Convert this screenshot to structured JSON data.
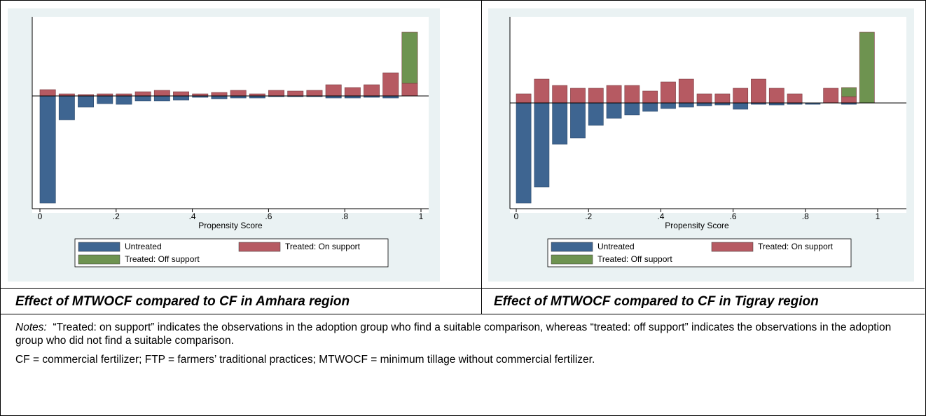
{
  "chart_data": [
    {
      "type": "mirrored-histogram",
      "x_label": "Propensity Score",
      "bins": [
        0,
        0.05,
        0.1,
        0.15,
        0.2,
        0.25,
        0.3,
        0.35,
        0.4,
        0.45,
        0.5,
        0.55,
        0.6,
        0.65,
        0.7,
        0.75,
        0.8,
        0.85,
        0.9,
        0.95,
        1
      ],
      "xlim": [
        0,
        1
      ],
      "xticks": [
        0,
        {
          "value": 0.2,
          "label": ".2"
        },
        {
          "value": 0.4,
          "label": ".4"
        },
        {
          "value": 0.6,
          "label": ".6"
        },
        {
          "value": 0.8,
          "label": ".8"
        },
        1
      ],
      "ylim": [
        -16,
        10
      ],
      "series": [
        {
          "name": "Untreated",
          "color": "#3e6591",
          "values": [
            -15.3,
            -3.4,
            -1.6,
            -1.1,
            -1.2,
            -0.7,
            -0.7,
            -0.6,
            -0.2,
            -0.4,
            -0.3,
            -0.3,
            -0.1,
            -0.1,
            -0.1,
            -0.3,
            -0.3,
            -0.2,
            -0.3,
            0
          ]
        },
        {
          "name": "Treated: On support",
          "color": "#b65a62",
          "values": [
            0.9,
            0.3,
            0.2,
            0.3,
            0.3,
            0.6,
            0.8,
            0.6,
            0.3,
            0.5,
            0.8,
            0.3,
            0.8,
            0.7,
            0.8,
            1.6,
            1.2,
            1.6,
            3.3,
            1.8
          ]
        },
        {
          "name": "Treated: Off support",
          "color": "#6e9350",
          "values": [
            0,
            0,
            0,
            0,
            0,
            0,
            0,
            0,
            0,
            0,
            0,
            0,
            0,
            0,
            0,
            0,
            0,
            0,
            0,
            7.3
          ]
        }
      ]
    },
    {
      "type": "mirrored-histogram",
      "x_label": "Propensity Score",
      "bins": [
        0,
        0.05,
        0.1,
        0.15,
        0.2,
        0.25,
        0.3,
        0.35,
        0.4,
        0.45,
        0.5,
        0.55,
        0.6,
        0.65,
        0.7,
        0.75,
        0.8,
        0.85,
        0.9,
        0.95,
        1
      ],
      "xlim": [
        0,
        1
      ],
      "xticks": [
        0,
        {
          "value": 0.2,
          "label": ".2"
        },
        {
          "value": 0.4,
          "label": ".4"
        },
        {
          "value": 0.6,
          "label": ".6"
        },
        {
          "value": 0.8,
          "label": ".8"
        },
        1
      ],
      "ylim": [
        -15,
        11.5
      ],
      "series": [
        {
          "name": "Untreated",
          "color": "#3e6591",
          "values": [
            -14.3,
            -12.0,
            -5.9,
            -5.0,
            -3.2,
            -2.2,
            -1.7,
            -1.2,
            -0.8,
            -0.6,
            -0.4,
            -0.3,
            -0.9,
            -0.2,
            -0.3,
            -0.2,
            -0.2,
            0,
            -0.2,
            0
          ]
        },
        {
          "name": "Treated: On support",
          "color": "#b65a62",
          "values": [
            1.3,
            3.4,
            2.5,
            2.1,
            2.1,
            2.5,
            2.5,
            1.7,
            3.0,
            3.4,
            1.3,
            1.3,
            2.1,
            3.4,
            2.1,
            1.3,
            0,
            2.1,
            0.9,
            0
          ]
        },
        {
          "name": "Treated: Off support",
          "color": "#6e9350",
          "values": [
            0,
            0,
            0,
            0,
            0,
            0,
            0,
            0,
            0,
            0,
            0,
            0,
            0,
            0,
            0,
            0,
            0,
            0,
            1.3,
            10.1
          ]
        }
      ]
    }
  ],
  "captions": [
    "Effect of MTWOCF compared to CF in Amhara region",
    "Effect of MTWOCF compared to CF in Tigray region"
  ],
  "notes": {
    "label": "Notes:",
    "text": "“Treated: on support” indicates the observations in the adoption group who find a suitable comparison, whereas “treated: off support” indicates the observations in the adoption group who did not find a suitable comparison.",
    "definitions": "CF = commercial fertilizer; FTP = farmers’ traditional practices; MTWOCF = minimum tillage without commercial fertilizer."
  }
}
